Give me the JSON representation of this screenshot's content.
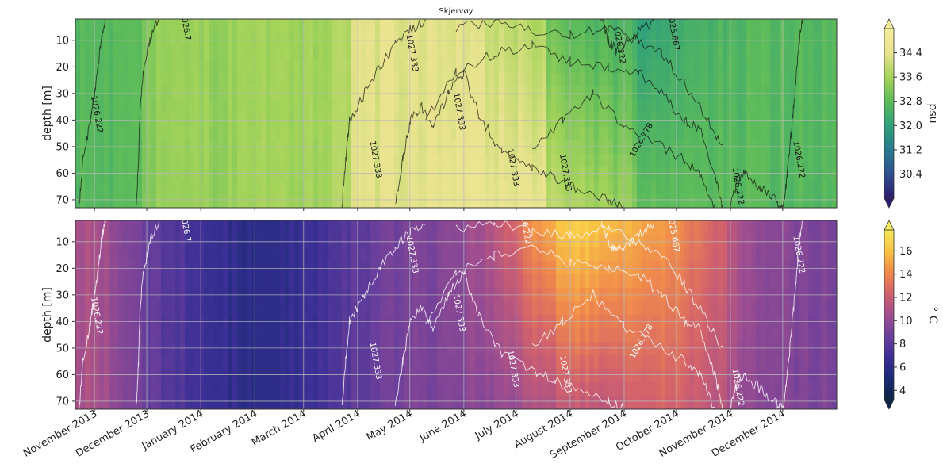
{
  "title": "Skjervøy",
  "chart_data": [
    {
      "type": "heatmap",
      "name": "salinity-panel",
      "title": "Skjervøy",
      "ylabel": "depth [m]",
      "ylim": [
        73,
        2
      ],
      "yticks": [
        10,
        20,
        30,
        40,
        50,
        60,
        70
      ],
      "colorbar_label": "psu",
      "colorbar_range": [
        29.6,
        35.2
      ],
      "colorbar_ticks": [
        "30.4",
        "31.2",
        "32.0",
        "32.8",
        "33.6",
        "34.4"
      ],
      "colormap_colors": [
        "#2b1b6e",
        "#2f4f8f",
        "#277b8e",
        "#2fa07a",
        "#5cbb5a",
        "#a6d45a",
        "#e9e38f",
        "#f3ec9c"
      ],
      "grid": true,
      "contour_lines_color": "#111111",
      "contour_labels": [
        {
          "text": "1026.7",
          "date": "2013-12-22",
          "depth": 5
        },
        {
          "text": "1026.222",
          "date": "2013-11-01",
          "depth": 38
        },
        {
          "text": "1027.333",
          "date": "2014-05-01",
          "depth": 15
        },
        {
          "text": "1027.333",
          "date": "2014-04-10",
          "depth": 55
        },
        {
          "text": "1027.333",
          "date": "2014-05-28",
          "depth": 37
        },
        {
          "text": "1027.333",
          "date": "2014-06-28",
          "depth": 58
        },
        {
          "text": "1027.333",
          "date": "2014-07-28",
          "depth": 60
        },
        {
          "text": "1026.222",
          "date": "2014-08-28",
          "depth": 12
        },
        {
          "text": "1025.667",
          "date": "2014-09-28",
          "depth": 7
        },
        {
          "text": "1026.778",
          "date": "2014-09-12",
          "depth": 48
        },
        {
          "text": "1026.222",
          "date": "2014-11-04",
          "depth": 65
        },
        {
          "text": "1026.222",
          "date": "2014-12-09",
          "depth": 55
        }
      ]
    },
    {
      "type": "heatmap",
      "name": "temperature-panel",
      "ylabel": "depth [m]",
      "ylim": [
        73,
        2
      ],
      "yticks": [
        10,
        20,
        30,
        40,
        50,
        60,
        70
      ],
      "colorbar_label": "° C",
      "colorbar_range": [
        3.2,
        17.8
      ],
      "colorbar_ticks": [
        "4",
        "6",
        "8",
        "10",
        "12",
        "14",
        "16"
      ],
      "colormap_colors": [
        "#0b2441",
        "#1b2a75",
        "#3b2f96",
        "#6a3f9c",
        "#a04e8f",
        "#d2616c",
        "#f08a4b",
        "#f9c245",
        "#f6ea5a"
      ],
      "grid": true,
      "contour_lines_color": "#ffffff",
      "contour_labels": [
        {
          "text": "1026.7",
          "date": "2013-12-22",
          "depth": 5
        },
        {
          "text": "1026.222",
          "date": "2013-11-01",
          "depth": 38
        },
        {
          "text": "1027.333",
          "date": "2014-05-01",
          "depth": 15
        },
        {
          "text": "1027.333",
          "date": "2014-04-10",
          "depth": 55
        },
        {
          "text": "1027.333",
          "date": "2014-05-28",
          "depth": 37
        },
        {
          "text": "1027.333",
          "date": "2014-06-28",
          "depth": 58
        },
        {
          "text": "1027.333",
          "date": "2014-07-28",
          "depth": 60
        },
        {
          "text": "026.222",
          "date": "2014-07-05",
          "depth": 5
        },
        {
          "text": "1025.667",
          "date": "2014-09-28",
          "depth": 7
        },
        {
          "text": "1026.778",
          "date": "2014-09-12",
          "depth": 48
        },
        {
          "text": "1026.222",
          "date": "2014-11-04",
          "depth": 65
        },
        {
          "text": "1026.222",
          "date": "2014-12-09",
          "depth": 15
        }
      ]
    }
  ],
  "x_axis": {
    "range": [
      "2013-10-21",
      "2015-01-01"
    ],
    "ticks": [
      {
        "label": "November 2013",
        "date": "2013-11-01"
      },
      {
        "label": "December 2013",
        "date": "2013-12-01"
      },
      {
        "label": "January 2014",
        "date": "2014-01-01"
      },
      {
        "label": "February 2014",
        "date": "2014-02-01"
      },
      {
        "label": "March 2014",
        "date": "2014-03-01"
      },
      {
        "label": "April 2014",
        "date": "2014-04-01"
      },
      {
        "label": "May 2014",
        "date": "2014-05-01"
      },
      {
        "label": "June 2014",
        "date": "2014-06-01"
      },
      {
        "label": "July 2014",
        "date": "2014-07-01"
      },
      {
        "label": "August 2014",
        "date": "2014-08-01"
      },
      {
        "label": "September 2014",
        "date": "2014-09-01"
      },
      {
        "label": "October 2014",
        "date": "2014-10-01"
      },
      {
        "label": "November 2014",
        "date": "2014-11-01"
      },
      {
        "label": "December 2014",
        "date": "2014-12-01"
      }
    ]
  }
}
